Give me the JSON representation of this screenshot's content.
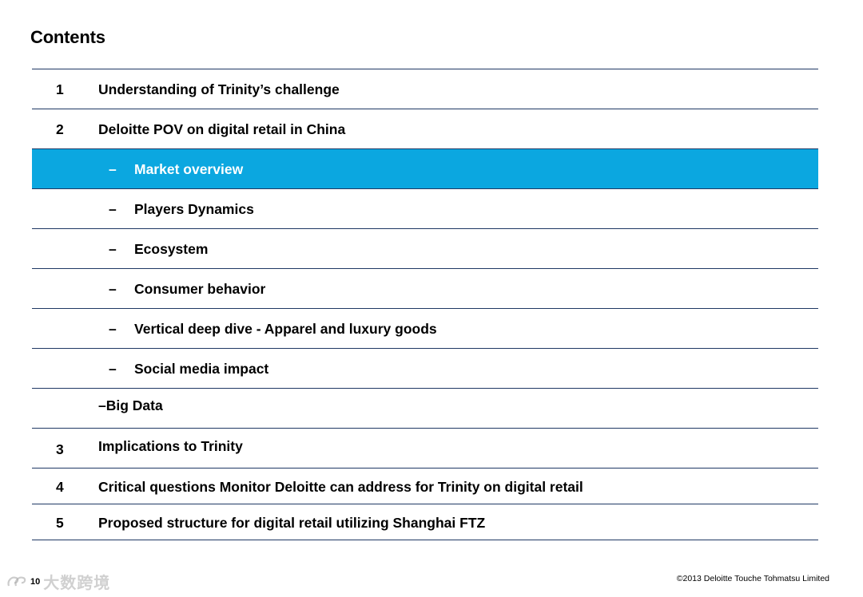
{
  "page": {
    "title": "Contents"
  },
  "toc": {
    "items": [
      {
        "num": "1",
        "label": "Understanding of Trinity’s challenge"
      },
      {
        "num": "2",
        "label": "Deloitte POV on digital retail in China"
      },
      {
        "dash": "–",
        "label": "Market overview"
      },
      {
        "dash": "–",
        "label": "Players Dynamics"
      },
      {
        "dash": "–",
        "label": "Ecosystem"
      },
      {
        "dash": "–",
        "label": "Consumer behavior"
      },
      {
        "dash": "–",
        "label": "Vertical deep dive - Apparel and luxury goods"
      },
      {
        "dash": "–",
        "label": "Social media impact"
      },
      {
        "label": "–Big Data"
      },
      {
        "num": "3",
        "label": "Implications to Trinity"
      },
      {
        "num": "4",
        "label": "Critical questions Monitor Deloitte can address for Trinity on digital retail"
      },
      {
        "num": "5",
        "label": "Proposed structure for digital retail utilizing Shanghai FTZ"
      }
    ],
    "highlight_color": "#0ba7e0",
    "rule_color": "#1f3864"
  },
  "footer": {
    "page_number": "10",
    "watermark": "大数跨境",
    "copyright": "©2013 Deloitte Touche Tohmatsu Limited"
  }
}
